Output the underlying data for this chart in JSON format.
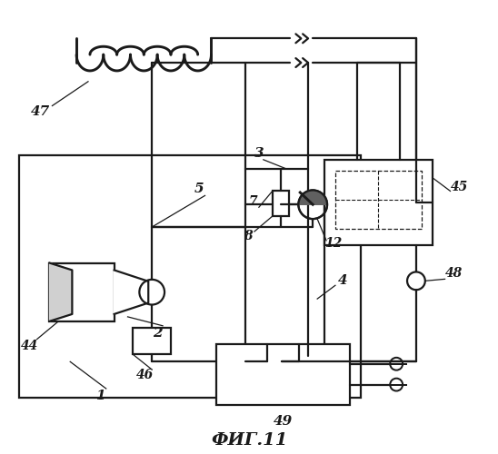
{
  "bg_color": "#ffffff",
  "line_color": "#1a1a1a",
  "lw": 1.6,
  "title": "ФИГ.11"
}
